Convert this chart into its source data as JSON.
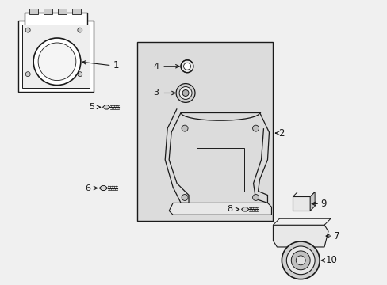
{
  "bg_color": "#f0f0f0",
  "white": "#ffffff",
  "black": "#1a1a1a",
  "gray_box": "#e0e0e0",
  "line_color": "#1a1a1a",
  "fig_width": 4.89,
  "fig_height": 3.6,
  "dpi": 100
}
